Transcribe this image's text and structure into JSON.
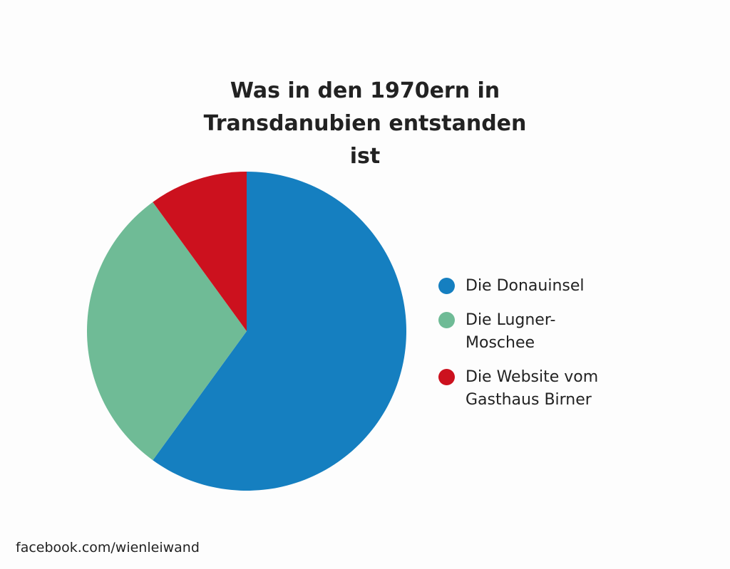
{
  "chart_data": {
    "type": "pie",
    "title": "Was in den 1970ern in Transdanubien entstanden ist",
    "categories": [
      "Die Donauinsel",
      "Die Lugner-Moschee",
      "Die Website vom Gasthaus Birner"
    ],
    "values": [
      60,
      30,
      10
    ],
    "colors": [
      "#157fc0",
      "#6fbb96",
      "#cc111e"
    ],
    "source": "facebook.com/wienleiwand"
  }
}
